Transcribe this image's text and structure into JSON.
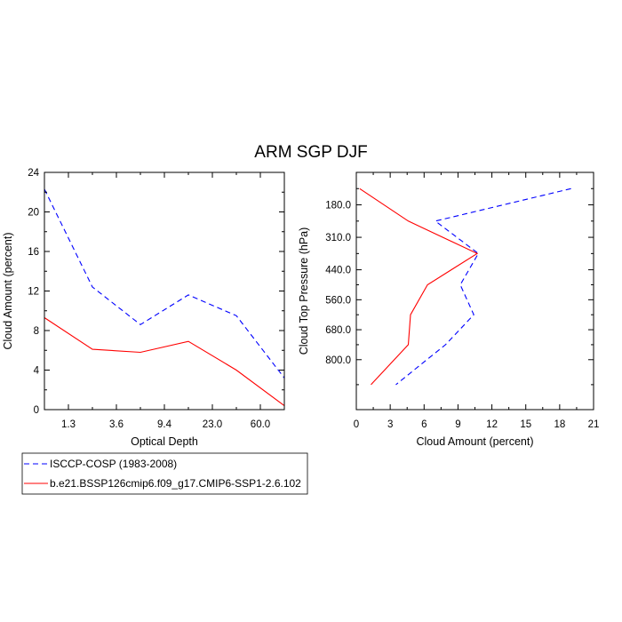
{
  "title": "ARM SGP DJF",
  "colors": {
    "isccp": "#0000ff",
    "model": "#ff0000"
  },
  "legend": {
    "placement": "bottom-left",
    "entries": [
      {
        "label": "ISCCP-COSP (1983-2008)",
        "color": "#0000ff",
        "dash": "dashed"
      },
      {
        "label": "b.e21.BSSP126cmip6.f09_g17.CMIP6-SSP1-2.6.102",
        "color": "#ff0000",
        "dash": "solid"
      }
    ]
  },
  "chart_data": [
    {
      "type": "line",
      "xlabel": "Optical Depth",
      "ylabel": "Cloud Amount (percent)",
      "xtick_labels": [
        "1.3",
        "3.6",
        "9.4",
        "23.0",
        "60.0"
      ],
      "ylim": [
        0,
        24
      ],
      "yticks": [
        0,
        4,
        8,
        12,
        16,
        20,
        24
      ],
      "series": [
        {
          "name": "ISCCP-COSP (1983-2008)",
          "values": [
            22.3,
            12.4,
            8.6,
            11.6,
            9.5,
            3.2
          ]
        },
        {
          "name": "b.e21.BSSP126cmip6.f09_g17.CMIP6-SSP1-2.6.102",
          "values": [
            9.3,
            6.1,
            5.8,
            6.9,
            4.0,
            0.4
          ]
        }
      ]
    },
    {
      "type": "line",
      "xlabel": "Cloud Amount (percent)",
      "ylabel": "Cloud Top Pressure (hPa)",
      "xlim": [
        0,
        21
      ],
      "xticks": [
        0,
        3,
        6,
        9,
        12,
        15,
        18,
        21
      ],
      "ylim": [
        50,
        1000
      ],
      "ytick_values": [
        180,
        310,
        440,
        560,
        680,
        800
      ],
      "ytick_labels": [
        "180.0",
        "310.0",
        "440.0",
        "560.0",
        "680.0",
        "800.0"
      ],
      "pressure_levels": [
        50,
        180,
        310,
        440,
        560,
        680,
        800,
        1000
      ],
      "series": [
        {
          "name": "ISCCP-COSP (1983-2008)",
          "values": [
            19.0,
            7.0,
            10.8,
            9.2,
            10.4,
            7.9,
            3.5
          ]
        },
        {
          "name": "b.e21.BSSP126cmip6.f09_g17.CMIP6-SSP1-2.6.102",
          "values": [
            0.3,
            4.6,
            10.7,
            6.3,
            4.8,
            4.6,
            1.3
          ]
        }
      ]
    }
  ]
}
